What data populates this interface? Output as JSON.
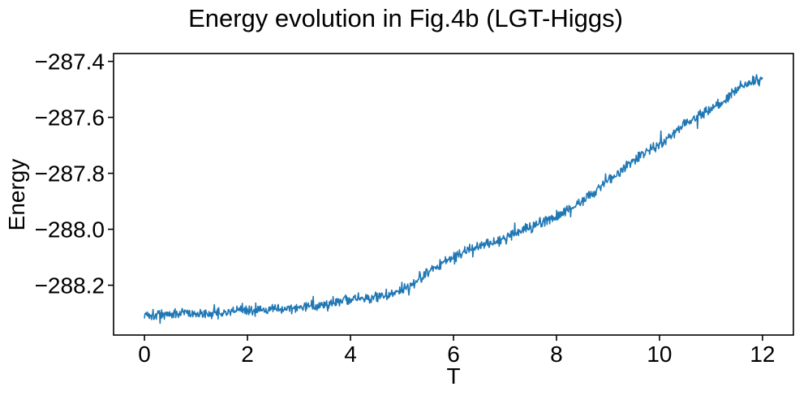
{
  "chart_data": {
    "type": "line",
    "title": "Energy evolution in Fig.4b (LGT-Higgs)",
    "xlabel": "T",
    "ylabel": "Energy",
    "grid": false,
    "legend": "none",
    "xlim": [
      -0.6,
      12.6
    ],
    "ylim": [
      -288.378,
      -287.372
    ],
    "x_ticks": [
      0,
      2,
      4,
      6,
      8,
      10,
      12
    ],
    "x_tick_labels": [
      "0",
      "2",
      "4",
      "6",
      "8",
      "10",
      "12"
    ],
    "y_ticks": [
      -287.4,
      -287.6,
      -287.8,
      -288.0,
      -288.2
    ],
    "y_tick_labels": [
      "−287.4",
      "−287.6",
      "−287.8",
      "−288.0",
      "−288.2"
    ],
    "series": [
      {
        "name": "Energy",
        "color": "#1f77b4",
        "line_width": 1.6,
        "noise_amplitude": 0.022,
        "points_rendered": 1150,
        "trend_t": [
          0,
          0.25,
          0.5,
          0.75,
          1,
          1.25,
          1.5,
          1.75,
          2,
          2.25,
          2.5,
          2.75,
          3,
          3.25,
          3.5,
          3.75,
          4,
          4.25,
          4.5,
          4.75,
          5,
          5.25,
          5.5,
          5.75,
          6,
          6.25,
          6.5,
          6.75,
          7,
          7.25,
          7.5,
          7.75,
          8,
          8.25,
          8.5,
          8.75,
          9,
          9.25,
          9.5,
          9.75,
          10,
          10.25,
          10.5,
          10.75,
          11,
          11.25,
          11.5,
          11.75,
          12
        ],
        "trend_values": [
          -288.303,
          -288.305,
          -288.302,
          -288.3,
          -288.302,
          -288.298,
          -288.297,
          -288.292,
          -288.29,
          -288.291,
          -288.287,
          -288.283,
          -288.28,
          -288.272,
          -288.266,
          -288.258,
          -288.251,
          -288.246,
          -288.24,
          -288.23,
          -288.214,
          -288.19,
          -288.155,
          -288.125,
          -288.098,
          -288.075,
          -288.06,
          -288.046,
          -288.032,
          -288.012,
          -287.992,
          -287.972,
          -287.952,
          -287.922,
          -287.898,
          -287.864,
          -287.824,
          -287.79,
          -287.752,
          -287.722,
          -287.698,
          -287.66,
          -287.622,
          -287.592,
          -287.57,
          -287.54,
          -287.503,
          -287.472,
          -287.462
        ]
      }
    ]
  }
}
